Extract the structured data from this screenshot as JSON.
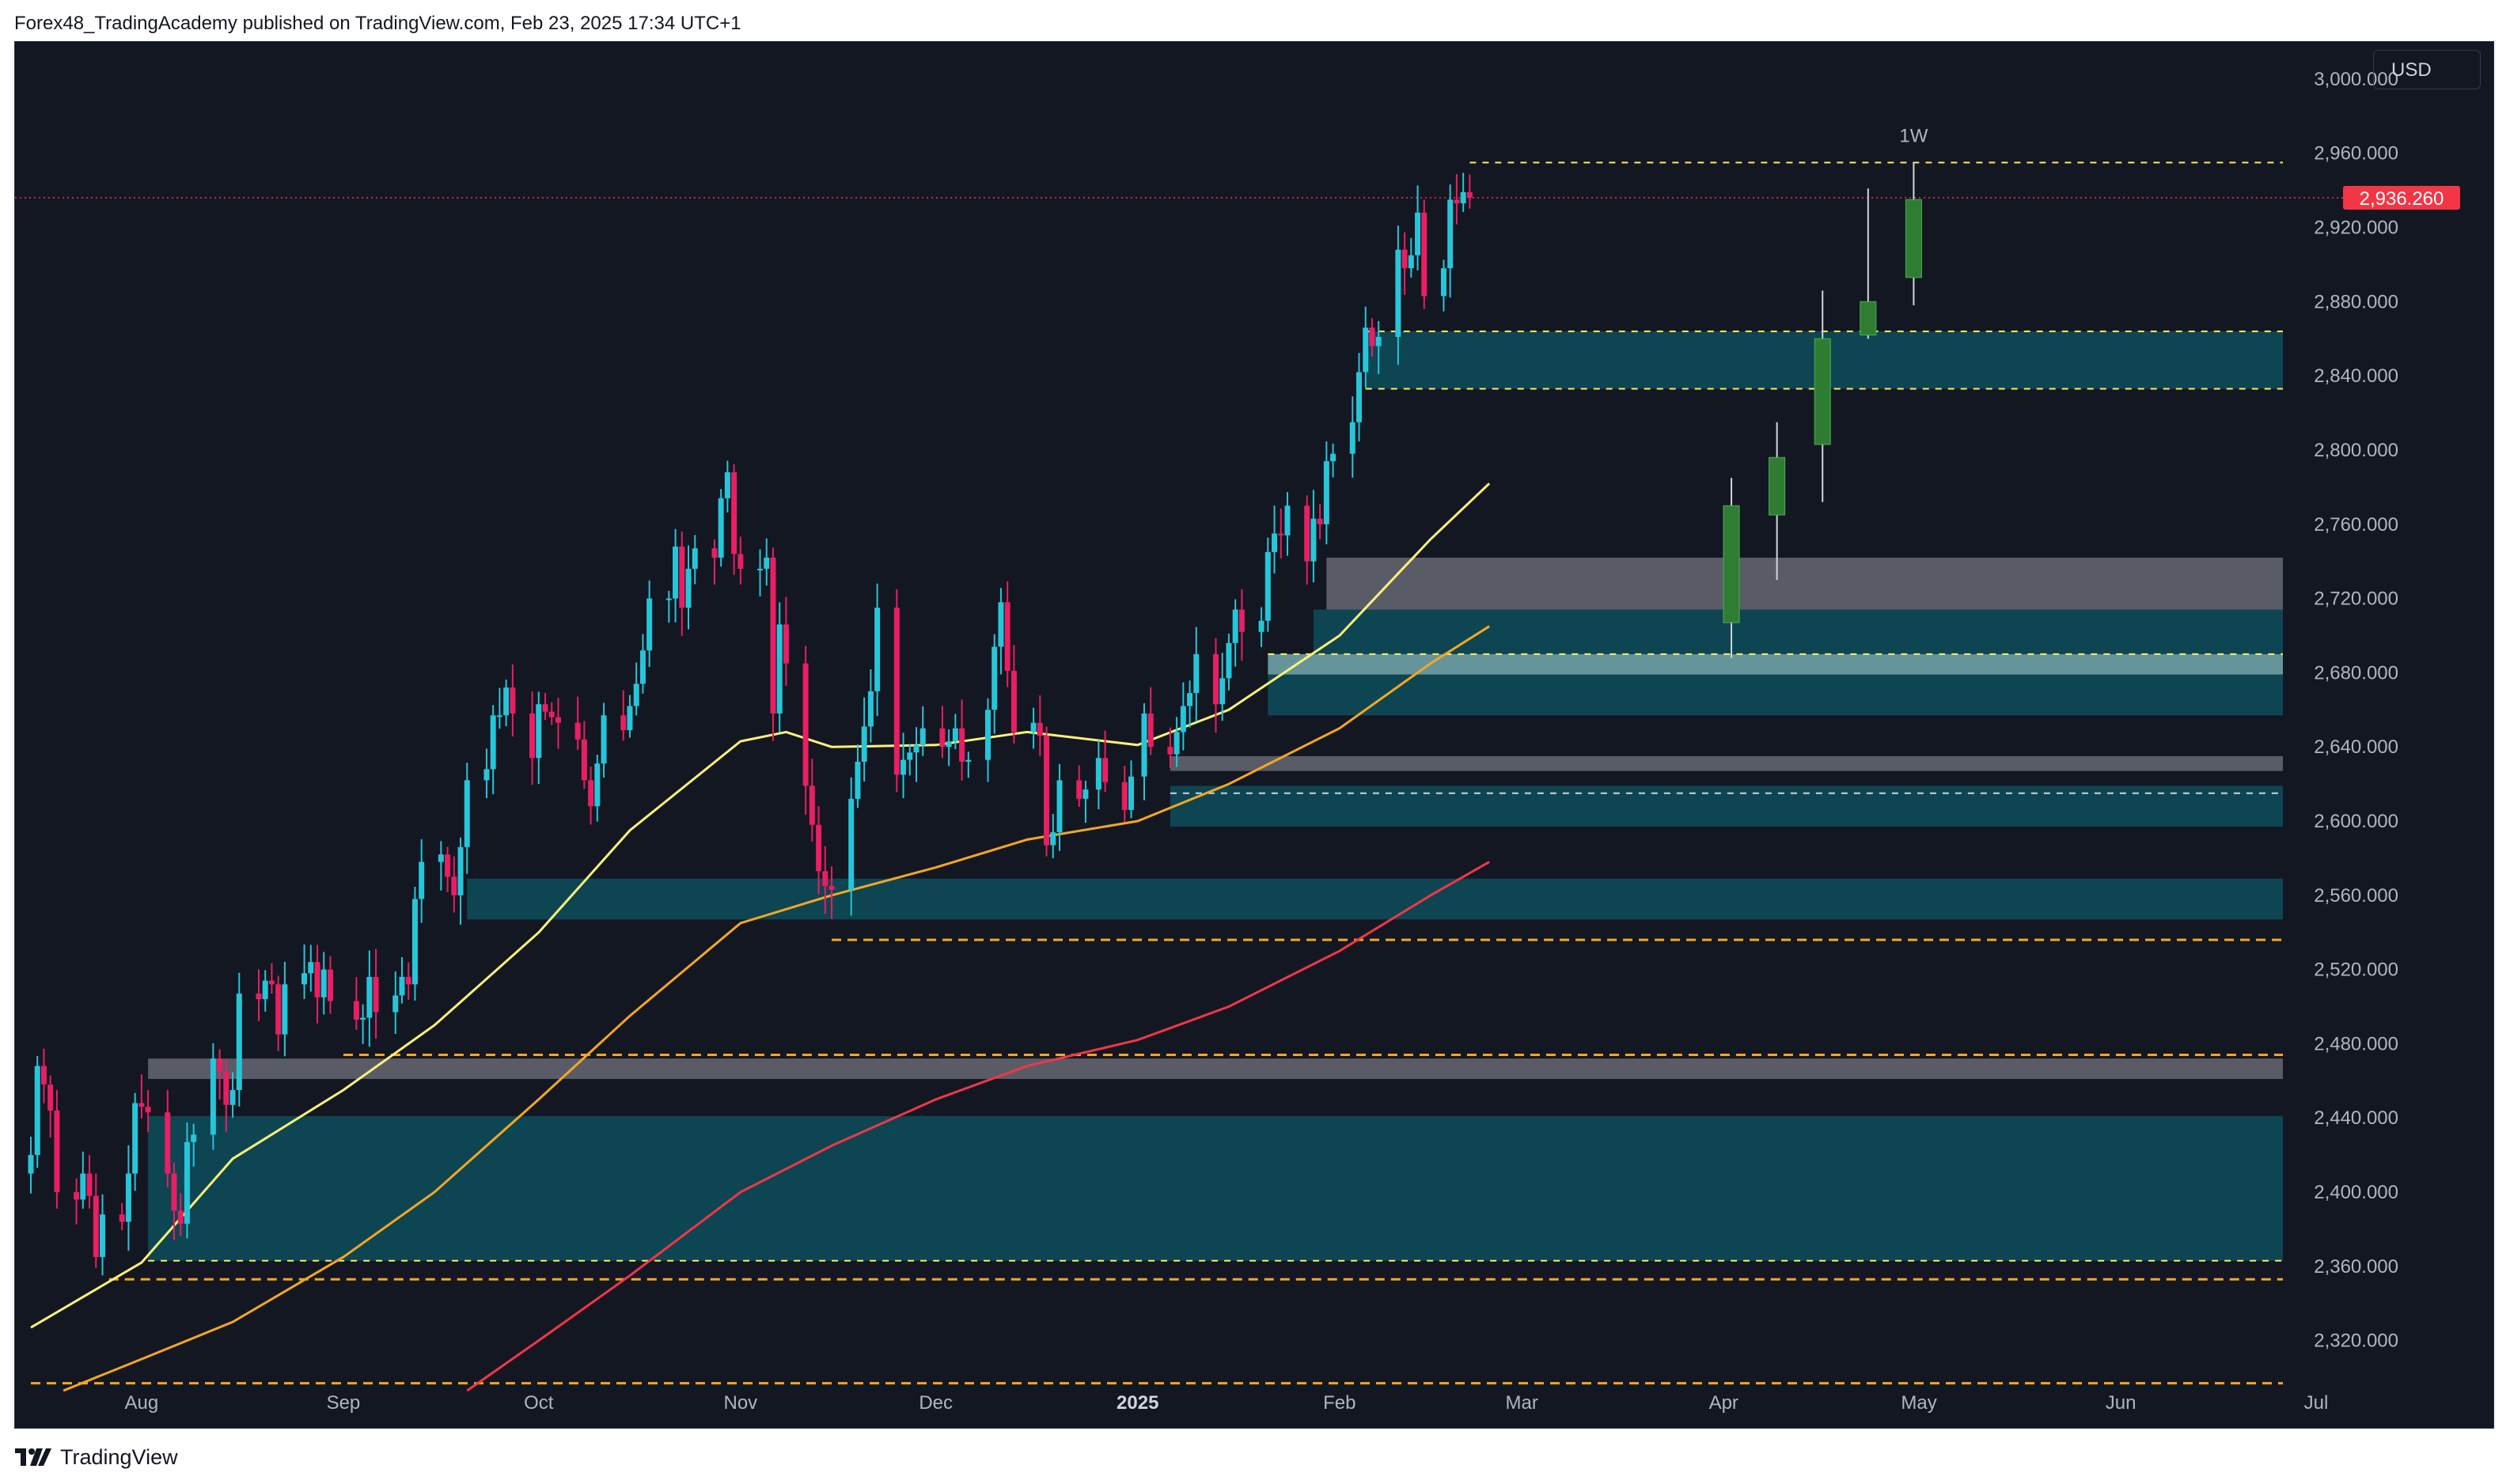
{
  "header": {
    "text": "Forex48_TradingAcademy published on TradingView.com, Feb 23, 2025 17:34 UTC+1"
  },
  "currency": "USD",
  "footer": {
    "brand": "TradingView"
  },
  "colors": {
    "background": "#131722",
    "up": "#26c6da",
    "down": "#e91e63",
    "zone_teal": "#0e4a58",
    "zone_gray": "#5d606b",
    "zone_lightteal": "#6fa3a8",
    "ema_yellow": "#fff176",
    "ema_orange": "#f5a623",
    "ema_red": "#f23645",
    "proj_candle": "#2e7d32",
    "level_dash": "#f5a623",
    "zone_dash": "#ffee58",
    "price_tag": "#f23645"
  },
  "chart_data": {
    "type": "candlestick",
    "symbol_price": "2,936.260",
    "ylim": [
      2290,
      3020
    ],
    "y_ticks": [
      "2,320.000",
      "2,360.000",
      "2,400.000",
      "2,440.000",
      "2,480.000",
      "2,520.000",
      "2,560.000",
      "2,600.000",
      "2,640.000",
      "2,680.000",
      "2,720.000",
      "2,760.000",
      "2,800.000",
      "2,840.000",
      "2,880.000",
      "2,920.000",
      "2,960.000",
      "3,000.000"
    ],
    "y_tick_values": [
      2320,
      2360,
      2400,
      2440,
      2480,
      2520,
      2560,
      2600,
      2640,
      2680,
      2720,
      2760,
      2800,
      2840,
      2880,
      2920,
      2960,
      3000
    ],
    "x_range": [
      "2024-07-15",
      "2025-07-01"
    ],
    "x_ticks": [
      {
        "label": "Aug",
        "date": "2024-08-01",
        "bold": false
      },
      {
        "label": "Sep",
        "date": "2024-09-01",
        "bold": false
      },
      {
        "label": "Oct",
        "date": "2024-10-01",
        "bold": false
      },
      {
        "label": "Nov",
        "date": "2024-11-01",
        "bold": false
      },
      {
        "label": "Dec",
        "date": "2024-12-01",
        "bold": false
      },
      {
        "label": "2025",
        "date": "2025-01-01",
        "bold": true
      },
      {
        "label": "Feb",
        "date": "2025-02-01",
        "bold": false
      },
      {
        "label": "Mar",
        "date": "2025-03-01",
        "bold": false
      },
      {
        "label": "Apr",
        "date": "2025-04-01",
        "bold": false
      },
      {
        "label": "May",
        "date": "2025-05-01",
        "bold": false
      },
      {
        "label": "Jun",
        "date": "2025-06-01",
        "bold": false
      },
      {
        "label": "Jul",
        "date": "2025-07-01",
        "bold": false
      }
    ],
    "daily_closes": [
      [
        "2024-07-15",
        2420
      ],
      [
        "2024-07-16",
        2468
      ],
      [
        "2024-07-17",
        2458
      ],
      [
        "2024-07-18",
        2444
      ],
      [
        "2024-07-19",
        2400
      ],
      [
        "2024-07-22",
        2396
      ],
      [
        "2024-07-23",
        2410
      ],
      [
        "2024-07-24",
        2398
      ],
      [
        "2024-07-25",
        2365
      ],
      [
        "2024-07-26",
        2388
      ],
      [
        "2024-07-29",
        2384
      ],
      [
        "2024-07-30",
        2410
      ],
      [
        "2024-07-31",
        2448
      ],
      [
        "2024-08-01",
        2446
      ],
      [
        "2024-08-02",
        2443
      ],
      [
        "2024-08-05",
        2410
      ],
      [
        "2024-08-06",
        2390
      ],
      [
        "2024-08-07",
        2383
      ],
      [
        "2024-08-08",
        2427
      ],
      [
        "2024-08-09",
        2431
      ],
      [
        "2024-08-12",
        2472
      ],
      [
        "2024-08-13",
        2465
      ],
      [
        "2024-08-14",
        2447
      ],
      [
        "2024-08-15",
        2455
      ],
      [
        "2024-08-16",
        2507
      ],
      [
        "2024-08-19",
        2504
      ],
      [
        "2024-08-20",
        2514
      ],
      [
        "2024-08-21",
        2512
      ],
      [
        "2024-08-22",
        2485
      ],
      [
        "2024-08-23",
        2512
      ],
      [
        "2024-08-26",
        2518
      ],
      [
        "2024-08-27",
        2524
      ],
      [
        "2024-08-28",
        2505
      ],
      [
        "2024-08-29",
        2520
      ],
      [
        "2024-08-30",
        2503
      ],
      [
        "2024-09-03",
        2493
      ],
      [
        "2024-09-04",
        2494
      ],
      [
        "2024-09-05",
        2516
      ],
      [
        "2024-09-06",
        2497
      ],
      [
        "2024-09-09",
        2506
      ],
      [
        "2024-09-10",
        2516
      ],
      [
        "2024-09-11",
        2512
      ],
      [
        "2024-09-12",
        2558
      ],
      [
        "2024-09-13",
        2578
      ],
      [
        "2024-09-16",
        2582
      ],
      [
        "2024-09-17",
        2570
      ],
      [
        "2024-09-18",
        2560
      ],
      [
        "2024-09-19",
        2586
      ],
      [
        "2024-09-20",
        2622
      ],
      [
        "2024-09-23",
        2628
      ],
      [
        "2024-09-24",
        2657
      ],
      [
        "2024-09-25",
        2657
      ],
      [
        "2024-09-26",
        2672
      ],
      [
        "2024-09-27",
        2658
      ],
      [
        "2024-09-30",
        2634
      ],
      [
        "2024-10-01",
        2663
      ],
      [
        "2024-10-02",
        2659
      ],
      [
        "2024-10-03",
        2656
      ],
      [
        "2024-10-04",
        2653
      ],
      [
        "2024-10-07",
        2644
      ],
      [
        "2024-10-08",
        2622
      ],
      [
        "2024-10-09",
        2608
      ],
      [
        "2024-10-10",
        2631
      ],
      [
        "2024-10-11",
        2657
      ],
      [
        "2024-10-14",
        2649
      ],
      [
        "2024-10-15",
        2662
      ],
      [
        "2024-10-16",
        2674
      ],
      [
        "2024-10-17",
        2692
      ],
      [
        "2024-10-18",
        2720
      ],
      [
        "2024-10-21",
        2720
      ],
      [
        "2024-10-22",
        2748
      ],
      [
        "2024-10-23",
        2715
      ],
      [
        "2024-10-24",
        2736
      ],
      [
        "2024-10-25",
        2747
      ],
      [
        "2024-10-28",
        2742
      ],
      [
        "2024-10-29",
        2774
      ],
      [
        "2024-10-30",
        2788
      ],
      [
        "2024-10-31",
        2744
      ],
      [
        "2024-11-01",
        2736
      ],
      [
        "2024-11-04",
        2736
      ],
      [
        "2024-11-05",
        2742
      ],
      [
        "2024-11-06",
        2658
      ],
      [
        "2024-11-07",
        2706
      ],
      [
        "2024-11-08",
        2685
      ],
      [
        "2024-11-11",
        2619
      ],
      [
        "2024-11-12",
        2598
      ],
      [
        "2024-11-13",
        2573
      ],
      [
        "2024-11-14",
        2565
      ],
      [
        "2024-11-15",
        2563
      ],
      [
        "2024-11-18",
        2612
      ],
      [
        "2024-11-19",
        2632
      ],
      [
        "2024-11-20",
        2651
      ],
      [
        "2024-11-21",
        2670
      ],
      [
        "2024-11-22",
        2715
      ],
      [
        "2024-11-25",
        2625
      ],
      [
        "2024-11-26",
        2633
      ],
      [
        "2024-11-27",
        2637
      ],
      [
        "2024-11-28",
        2641
      ],
      [
        "2024-11-29",
        2650
      ],
      [
        "2024-12-02",
        2640
      ],
      [
        "2024-12-03",
        2643
      ],
      [
        "2024-12-04",
        2650
      ],
      [
        "2024-12-05",
        2632
      ],
      [
        "2024-12-06",
        2633
      ],
      [
        "2024-12-09",
        2660
      ],
      [
        "2024-12-10",
        2694
      ],
      [
        "2024-12-11",
        2718
      ],
      [
        "2024-12-12",
        2681
      ],
      [
        "2024-12-13",
        2648
      ],
      [
        "2024-12-16",
        2653
      ],
      [
        "2024-12-17",
        2646
      ],
      [
        "2024-12-18",
        2587
      ],
      [
        "2024-12-19",
        2594
      ],
      [
        "2024-12-20",
        2622
      ],
      [
        "2024-12-23",
        2612
      ],
      [
        "2024-12-24",
        2617
      ],
      [
        "2024-12-26",
        2634
      ],
      [
        "2024-12-27",
        2621
      ],
      [
        "2024-12-30",
        2606
      ],
      [
        "2024-12-31",
        2624
      ],
      [
        "2025-01-02",
        2658
      ],
      [
        "2025-01-03",
        2640
      ],
      [
        "2025-01-06",
        2636
      ],
      [
        "2025-01-07",
        2648
      ],
      [
        "2025-01-08",
        2662
      ],
      [
        "2025-01-09",
        2669
      ],
      [
        "2025-01-10",
        2690
      ],
      [
        "2025-01-13",
        2663
      ],
      [
        "2025-01-14",
        2677
      ],
      [
        "2025-01-15",
        2696
      ],
      [
        "2025-01-16",
        2714
      ],
      [
        "2025-01-17",
        2702
      ],
      [
        "2025-01-20",
        2708
      ],
      [
        "2025-01-21",
        2745
      ],
      [
        "2025-01-22",
        2755
      ],
      [
        "2025-01-23",
        2754
      ],
      [
        "2025-01-24",
        2770
      ],
      [
        "2025-01-27",
        2740
      ],
      [
        "2025-01-28",
        2763
      ],
      [
        "2025-01-29",
        2760
      ],
      [
        "2025-01-30",
        2794
      ],
      [
        "2025-01-31",
        2798
      ],
      [
        "2025-02-03",
        2815
      ],
      [
        "2025-02-04",
        2842
      ],
      [
        "2025-02-05",
        2866
      ],
      [
        "2025-02-06",
        2856
      ],
      [
        "2025-02-07",
        2861
      ],
      [
        "2025-02-10",
        2908
      ],
      [
        "2025-02-11",
        2898
      ],
      [
        "2025-02-12",
        2905
      ],
      [
        "2025-02-13",
        2928
      ],
      [
        "2025-02-14",
        2883
      ],
      [
        "2025-02-17",
        2898
      ],
      [
        "2025-02-18",
        2935
      ],
      [
        "2025-02-19",
        2933
      ],
      [
        "2025-02-20",
        2939
      ],
      [
        "2025-02-21",
        2936
      ]
    ],
    "ema_series": [
      {
        "name": "EMA fast",
        "color": "#fff176",
        "points": [
          [
            "2024-07-15",
            2327
          ],
          [
            "2024-08-01",
            2362
          ],
          [
            "2024-08-15",
            2418
          ],
          [
            "2024-09-01",
            2455
          ],
          [
            "2024-09-15",
            2490
          ],
          [
            "2024-10-01",
            2540
          ],
          [
            "2024-10-15",
            2595
          ],
          [
            "2024-11-01",
            2643
          ],
          [
            "2024-11-08",
            2648
          ],
          [
            "2024-11-15",
            2640
          ],
          [
            "2024-12-01",
            2641
          ],
          [
            "2024-12-15",
            2648
          ],
          [
            "2025-01-01",
            2641
          ],
          [
            "2025-01-15",
            2660
          ],
          [
            "2025-02-01",
            2700
          ],
          [
            "2025-02-15",
            2752
          ],
          [
            "2025-02-24",
            2782
          ]
        ]
      },
      {
        "name": "EMA mid",
        "color": "#f5a623",
        "points": [
          [
            "2024-07-20",
            2293
          ],
          [
            "2024-08-01",
            2310
          ],
          [
            "2024-08-15",
            2330
          ],
          [
            "2024-09-01",
            2365
          ],
          [
            "2024-09-15",
            2400
          ],
          [
            "2024-10-01",
            2450
          ],
          [
            "2024-10-15",
            2495
          ],
          [
            "2024-11-01",
            2545
          ],
          [
            "2024-11-15",
            2560
          ],
          [
            "2024-12-01",
            2575
          ],
          [
            "2024-12-15",
            2590
          ],
          [
            "2025-01-01",
            2600
          ],
          [
            "2025-01-15",
            2620
          ],
          [
            "2025-02-01",
            2650
          ],
          [
            "2025-02-15",
            2685
          ],
          [
            "2025-02-24",
            2705
          ]
        ]
      },
      {
        "name": "EMA slow",
        "color": "#f23645",
        "points": [
          [
            "2024-09-20",
            2293
          ],
          [
            "2024-10-01",
            2320
          ],
          [
            "2024-10-15",
            2355
          ],
          [
            "2024-11-01",
            2400
          ],
          [
            "2024-11-15",
            2425
          ],
          [
            "2024-12-01",
            2450
          ],
          [
            "2024-12-15",
            2468
          ],
          [
            "2025-01-01",
            2482
          ],
          [
            "2025-01-15",
            2500
          ],
          [
            "2025-02-01",
            2530
          ],
          [
            "2025-02-15",
            2560
          ],
          [
            "2025-02-24",
            2578
          ]
        ]
      }
    ],
    "zones": [
      {
        "kind": "teal",
        "from": "2024-08-02",
        "top": 2441,
        "bottom": 2363
      },
      {
        "kind": "gray",
        "from": "2024-08-02",
        "top": 2472,
        "bottom": 2461
      },
      {
        "kind": "teal",
        "from": "2024-09-20",
        "top": 2569,
        "bottom": 2547
      },
      {
        "kind": "teal",
        "from": "2025-01-06",
        "top": 2619,
        "bottom": 2597
      },
      {
        "kind": "gray",
        "from": "2025-01-06",
        "top": 2635,
        "bottom": 2627
      },
      {
        "kind": "teal",
        "from": "2025-01-21",
        "top": 2679,
        "bottom": 2657
      },
      {
        "kind": "lightteal",
        "from": "2025-01-21",
        "top": 2690,
        "bottom": 2679
      },
      {
        "kind": "teal",
        "from": "2025-01-28",
        "top": 2714,
        "bottom": 2690
      },
      {
        "kind": "gray",
        "from": "2025-01-30",
        "top": 2742,
        "bottom": 2714
      },
      {
        "kind": "teal",
        "from": "2025-02-05",
        "top": 2864,
        "bottom": 2833
      }
    ],
    "levels": [
      {
        "style": "orange-dash",
        "from": "2024-07-15",
        "value": 2297
      },
      {
        "style": "orange-dash",
        "from": "2024-07-27",
        "value": 2353
      },
      {
        "style": "orange-dash",
        "from": "2024-09-01",
        "value": 2474
      },
      {
        "style": "orange-dash",
        "from": "2024-11-15",
        "value": 2536
      },
      {
        "style": "yellow-dash",
        "from": "2024-08-02",
        "value": 2363
      },
      {
        "style": "yellow-dash",
        "from": "2025-01-21",
        "value": 2690
      },
      {
        "style": "yellow-dash",
        "from": "2025-02-05",
        "value": 2864
      },
      {
        "style": "yellow-dash",
        "from": "2025-02-05",
        "value": 2833
      },
      {
        "style": "yellow-dash",
        "from": "2025-02-21",
        "value": 2955
      },
      {
        "style": "white-dash",
        "from": "2025-01-06",
        "value": 2615
      }
    ],
    "weekly_projection": {
      "label": "1W",
      "candles": [
        {
          "date": "2025-03-31",
          "open": 2707,
          "high": 2785,
          "low": 2688,
          "close": 2770
        },
        {
          "date": "2025-04-07",
          "open": 2765,
          "high": 2815,
          "low": 2730,
          "close": 2796
        },
        {
          "date": "2025-04-14",
          "open": 2803,
          "high": 2886,
          "low": 2772,
          "close": 2860
        },
        {
          "date": "2025-04-21",
          "open": 2862,
          "high": 2941,
          "low": 2860,
          "close": 2880
        },
        {
          "date": "2025-04-28",
          "open": 2893,
          "high": 2955,
          "low": 2878,
          "close": 2935
        }
      ]
    }
  }
}
